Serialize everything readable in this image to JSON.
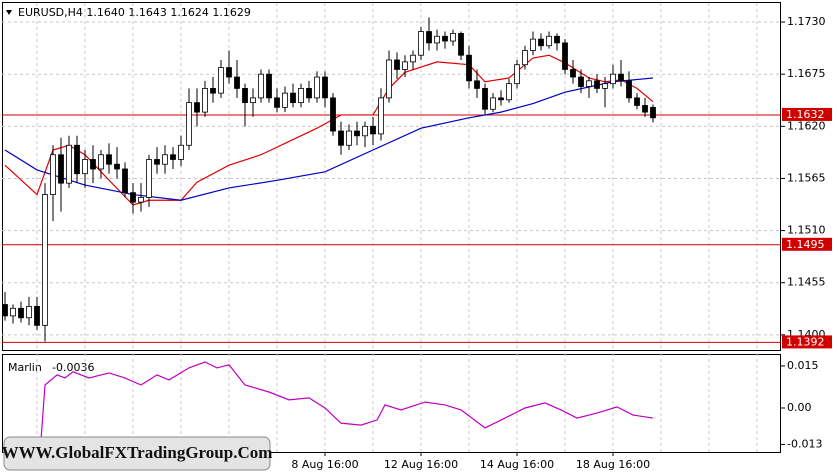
{
  "chart_data": [
    {
      "type": "candlestick",
      "header": "EURUSD,H4  1.1640 1.1643 1.1624 1.1629",
      "categories": [
        null,
        null,
        null,
        null,
        null,
        null,
        null,
        null,
        null,
        null,
        null,
        null,
        null,
        null,
        null,
        null,
        null,
        null,
        null,
        null,
        null,
        null,
        null,
        null,
        null,
        null,
        null,
        null,
        null,
        null,
        null,
        null,
        null,
        null,
        null,
        null,
        null,
        null,
        null,
        null,
        "8 Aug 16:00",
        null,
        null,
        null,
        null,
        null,
        null,
        null,
        null,
        null,
        null,
        null,
        "12 Aug 16:00",
        null,
        null,
        null,
        null,
        null,
        null,
        null,
        null,
        null,
        null,
        null,
        "14 Aug 16:00",
        null,
        null,
        null,
        null,
        null,
        null,
        null,
        null,
        null,
        null,
        null,
        "18 Aug 16:00",
        null,
        null,
        null,
        null,
        null
      ],
      "open": [
        1.1432,
        1.142,
        1.1428,
        1.1418,
        1.143,
        1.141,
        1.1548,
        1.159,
        1.156,
        1.16,
        1.157,
        1.1585,
        1.1575,
        1.159,
        1.158,
        1.1575,
        1.155,
        1.154,
        1.1545,
        1.1585,
        1.158,
        1.159,
        1.1585,
        1.16,
        1.1645,
        1.1635,
        1.166,
        1.1655,
        1.1682,
        1.1672,
        1.166,
        1.1645,
        1.165,
        1.1675,
        1.165,
        1.164,
        1.1655,
        1.1645,
        1.166,
        1.165,
        1.1672,
        1.165,
        1.1615,
        1.16,
        1.1615,
        1.161,
        1.162,
        1.1612,
        1.165,
        1.169,
        1.168,
        1.1688,
        1.1695,
        1.172,
        1.1708,
        1.1715,
        1.171,
        1.1718,
        1.1695,
        1.1668,
        1.166,
        1.1638,
        1.165,
        1.1648,
        1.1665,
        1.1685,
        1.17,
        1.1712,
        1.1705,
        1.1715,
        1.1708,
        1.168,
        1.1672,
        1.1662,
        1.1668,
        1.166,
        1.1665,
        1.1675,
        1.1668,
        1.165,
        1.1642,
        1.164
      ],
      "high": [
        1.1445,
        1.1432,
        1.1435,
        1.144,
        1.144,
        1.156,
        1.16,
        1.1608,
        1.161,
        1.161,
        1.1595,
        1.16,
        1.1595,
        1.1602,
        1.1598,
        1.1582,
        1.156,
        1.156,
        1.159,
        1.1598,
        1.16,
        1.1598,
        1.161,
        1.166,
        1.166,
        1.1668,
        1.1672,
        1.169,
        1.17,
        1.169,
        1.1665,
        1.166,
        1.168,
        1.168,
        1.166,
        1.1662,
        1.1665,
        1.1665,
        1.1668,
        1.1678,
        1.1678,
        1.1655,
        1.1625,
        1.1622,
        1.1625,
        1.1625,
        1.163,
        1.166,
        1.17,
        1.1698,
        1.1695,
        1.17,
        1.1725,
        1.1735,
        1.1722,
        1.172,
        1.1722,
        1.172,
        1.1705,
        1.168,
        1.1665,
        1.1655,
        1.1658,
        1.167,
        1.169,
        1.1705,
        1.172,
        1.1718,
        1.172,
        1.1718,
        1.1712,
        1.169,
        1.168,
        1.1672,
        1.1675,
        1.1672,
        1.1685,
        1.169,
        1.1678,
        1.1655,
        1.165,
        1.1643
      ],
      "low": [
        1.1415,
        1.1412,
        1.1413,
        1.141,
        1.1405,
        1.1393,
        1.152,
        1.153,
        1.1555,
        1.156,
        1.1555,
        1.156,
        1.1565,
        1.157,
        1.1565,
        1.1545,
        1.1528,
        1.153,
        1.1535,
        1.157,
        1.157,
        1.1575,
        1.1578,
        1.1595,
        1.162,
        1.163,
        1.1645,
        1.165,
        1.1665,
        1.165,
        1.162,
        1.163,
        1.1645,
        1.1645,
        1.1635,
        1.1635,
        1.164,
        1.164,
        1.1645,
        1.1645,
        1.164,
        1.161,
        1.159,
        1.1595,
        1.16,
        1.1598,
        1.16,
        1.1605,
        1.1645,
        1.167,
        1.1672,
        1.168,
        1.169,
        1.17,
        1.17,
        1.1702,
        1.1705,
        1.169,
        1.166,
        1.165,
        1.1632,
        1.1635,
        1.1642,
        1.1645,
        1.166,
        1.168,
        1.1695,
        1.17,
        1.1702,
        1.17,
        1.1675,
        1.1665,
        1.1655,
        1.165,
        1.1655,
        1.164,
        1.166,
        1.1662,
        1.1645,
        1.1638,
        1.163,
        1.1624
      ],
      "close": [
        1.142,
        1.1428,
        1.1418,
        1.143,
        1.141,
        1.1548,
        1.159,
        1.156,
        1.16,
        1.157,
        1.1585,
        1.1575,
        1.159,
        1.158,
        1.1575,
        1.155,
        1.154,
        1.1545,
        1.1585,
        1.158,
        1.159,
        1.1585,
        1.16,
        1.1645,
        1.1635,
        1.166,
        1.1655,
        1.1682,
        1.1672,
        1.166,
        1.1645,
        1.165,
        1.1675,
        1.165,
        1.164,
        1.1655,
        1.1645,
        1.166,
        1.165,
        1.1672,
        1.165,
        1.1615,
        1.16,
        1.1615,
        1.161,
        1.162,
        1.1612,
        1.165,
        1.169,
        1.168,
        1.1688,
        1.1695,
        1.172,
        1.1708,
        1.1715,
        1.171,
        1.1718,
        1.1695,
        1.1668,
        1.166,
        1.1638,
        1.165,
        1.1648,
        1.1665,
        1.1685,
        1.17,
        1.1712,
        1.1705,
        1.1715,
        1.1708,
        1.168,
        1.1672,
        1.1662,
        1.1668,
        1.166,
        1.1665,
        1.1675,
        1.1668,
        1.165,
        1.1642,
        1.1635,
        1.1629
      ],
      "series": [
        {
          "color": "#e00000",
          "x": [
            0,
            4,
            6,
            8,
            10,
            12,
            16,
            18,
            22,
            24,
            28,
            32,
            36,
            39,
            42,
            46,
            48,
            50,
            54,
            58,
            60,
            63,
            66,
            68,
            70,
            73,
            75,
            77,
            79,
            81
          ],
          "values": [
            1.1579,
            1.1548,
            1.1595,
            1.16,
            1.159,
            1.1572,
            1.1537,
            1.1542,
            1.1542,
            1.1561,
            1.1579,
            1.159,
            1.1606,
            1.1618,
            1.1632,
            1.1632,
            1.166,
            1.1677,
            1.1688,
            1.1685,
            1.1667,
            1.1671,
            1.1692,
            1.1695,
            1.1687,
            1.1671,
            1.1667,
            1.1669,
            1.166,
            1.1646
          ]
        },
        {
          "color": "#0000c0",
          "x": [
            0,
            4,
            10,
            16,
            22,
            28,
            34,
            40,
            46,
            52,
            58,
            62,
            66,
            70,
            76,
            81
          ],
          "values": [
            1.1595,
            1.1574,
            1.1558,
            1.1548,
            1.1542,
            1.1555,
            1.1563,
            1.1572,
            1.1595,
            1.1618,
            1.1629,
            1.1635,
            1.1644,
            1.1656,
            1.1667,
            1.1671
          ]
        }
      ],
      "levels": [
        1.1632,
        1.1495,
        1.1392
      ],
      "level_color": "#d00000",
      "ylim": [
        1.1384,
        1.1748
      ],
      "yticks": [
        {
          "value": 1.173,
          "label": "1.1730"
        },
        1.1675,
        {
          "value": 1.162,
          "label": "1.1620"
        },
        1.1565,
        {
          "value": 1.151,
          "label": "1.1510"
        },
        1.1455,
        {
          "value": 1.14,
          "label": "1.1400"
        }
      ],
      "grid": true
    },
    {
      "type": "line",
      "name": "Marlin",
      "last": -0.0036,
      "color": "#c000c0",
      "x": [
        4.5,
        5,
        6.5,
        7.5,
        8.5,
        10.5,
        13,
        15,
        17,
        19,
        20.5,
        23,
        25,
        26.5,
        28,
        30,
        33,
        35.5,
        38,
        40,
        42,
        44.5,
        46.5,
        47.5,
        49.5,
        52.5,
        55,
        57,
        60,
        62,
        65,
        67.5,
        69.5,
        71.5,
        74,
        76.5,
        78.5,
        81
      ],
      "values": [
        -0.0114,
        0.0082,
        0.0118,
        0.0107,
        0.0129,
        0.0107,
        0.0125,
        0.0107,
        0.0082,
        0.0118,
        0.01,
        0.0143,
        0.0164,
        0.0143,
        0.0154,
        0.0082,
        0.0057,
        0.0029,
        0.0036,
        0,
        -0.0054,
        -0.0061,
        -0.0043,
        0.0011,
        -0.0007,
        0.0021,
        0.0011,
        -0.0007,
        -0.0071,
        -0.0043,
        0,
        0.0018,
        -0.0007,
        -0.0036,
        -0.0018,
        0.0004,
        -0.0025,
        -0.0036
      ],
      "ylim": [
        -0.0157,
        0.0189
      ],
      "yticks": [
        0.015,
        {
          "value": 0,
          "label": "0.00"
        },
        -0.013
      ],
      "grid": false
    }
  ],
  "watermark": "WWW.GlobalFXTradingGroup.Com"
}
